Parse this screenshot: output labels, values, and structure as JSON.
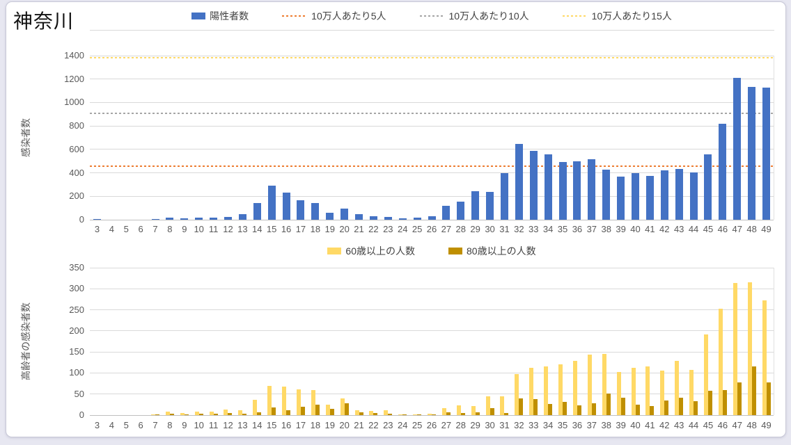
{
  "page": {
    "title": "神奈川"
  },
  "chart_data": [
    {
      "type": "bar",
      "title": "神奈川",
      "ylabel": "感染者数",
      "ylim": [
        0,
        1400
      ],
      "ytick_step": 200,
      "grid": true,
      "legend_position": "top",
      "categories": [
        3,
        4,
        5,
        6,
        7,
        8,
        9,
        10,
        11,
        12,
        13,
        14,
        15,
        16,
        17,
        18,
        19,
        20,
        21,
        22,
        23,
        24,
        25,
        26,
        27,
        28,
        29,
        30,
        31,
        32,
        33,
        34,
        35,
        36,
        37,
        38,
        39,
        40,
        41,
        42,
        43,
        44,
        45,
        46,
        47,
        48,
        49
      ],
      "series": [
        {
          "name": "陽性者数",
          "color": "#4472C4",
          "values": [
            5,
            0,
            0,
            0,
            5,
            15,
            10,
            20,
            20,
            25,
            50,
            140,
            290,
            230,
            165,
            140,
            60,
            95,
            50,
            30,
            25,
            10,
            20,
            30,
            120,
            155,
            245,
            240,
            400,
            645,
            590,
            560,
            490,
            500,
            515,
            430,
            365,
            395,
            375,
            420,
            435,
            405,
            560,
            820,
            1210,
            1135,
            1130
          ]
        }
      ],
      "thresholds": [
        {
          "label": "10万人あたり5人",
          "value": 455,
          "color": "#ED7D31"
        },
        {
          "label": "10万人あたり10人",
          "value": 910,
          "color": "#A5A5A5"
        },
        {
          "label": "10万人あたり15人",
          "value": 1380,
          "color": "#FFD966"
        }
      ]
    },
    {
      "type": "bar",
      "ylabel": "高齢者の感染者数",
      "ylim": [
        0,
        350
      ],
      "ytick_step": 50,
      "grid": true,
      "legend_position": "top",
      "categories": [
        3,
        4,
        5,
        6,
        7,
        8,
        9,
        10,
        11,
        12,
        13,
        14,
        15,
        16,
        17,
        18,
        19,
        20,
        21,
        22,
        23,
        24,
        25,
        26,
        27,
        28,
        29,
        30,
        31,
        32,
        33,
        34,
        35,
        36,
        37,
        38,
        39,
        40,
        41,
        42,
        43,
        44,
        45,
        46,
        47,
        48,
        49
      ],
      "series": [
        {
          "name": "60歳以上の人数",
          "color": "#FFD966",
          "values": [
            0,
            0,
            0,
            0,
            2,
            9,
            5,
            8,
            8,
            14,
            12,
            36,
            70,
            68,
            61,
            60,
            25,
            39,
            12,
            10,
            11,
            2,
            2,
            3,
            17,
            23,
            22,
            44,
            45,
            97,
            113,
            115,
            120,
            128,
            143,
            145,
            103,
            113,
            115,
            106,
            128,
            107,
            192,
            252,
            313,
            316,
            272
          ]
        },
        {
          "name": "80歳以上の人数",
          "color": "#BF8F00",
          "values": [
            0,
            0,
            0,
            0,
            1,
            4,
            2,
            3,
            4,
            5,
            4,
            6,
            18,
            12,
            19,
            25,
            15,
            28,
            7,
            5,
            4,
            1,
            1,
            1,
            6,
            5,
            7,
            17,
            5,
            40,
            38,
            27,
            31,
            23,
            28,
            52,
            41,
            25,
            21,
            35,
            42,
            33,
            57,
            60,
            77,
            116,
            77
          ]
        }
      ],
      "thresholds": []
    }
  ]
}
